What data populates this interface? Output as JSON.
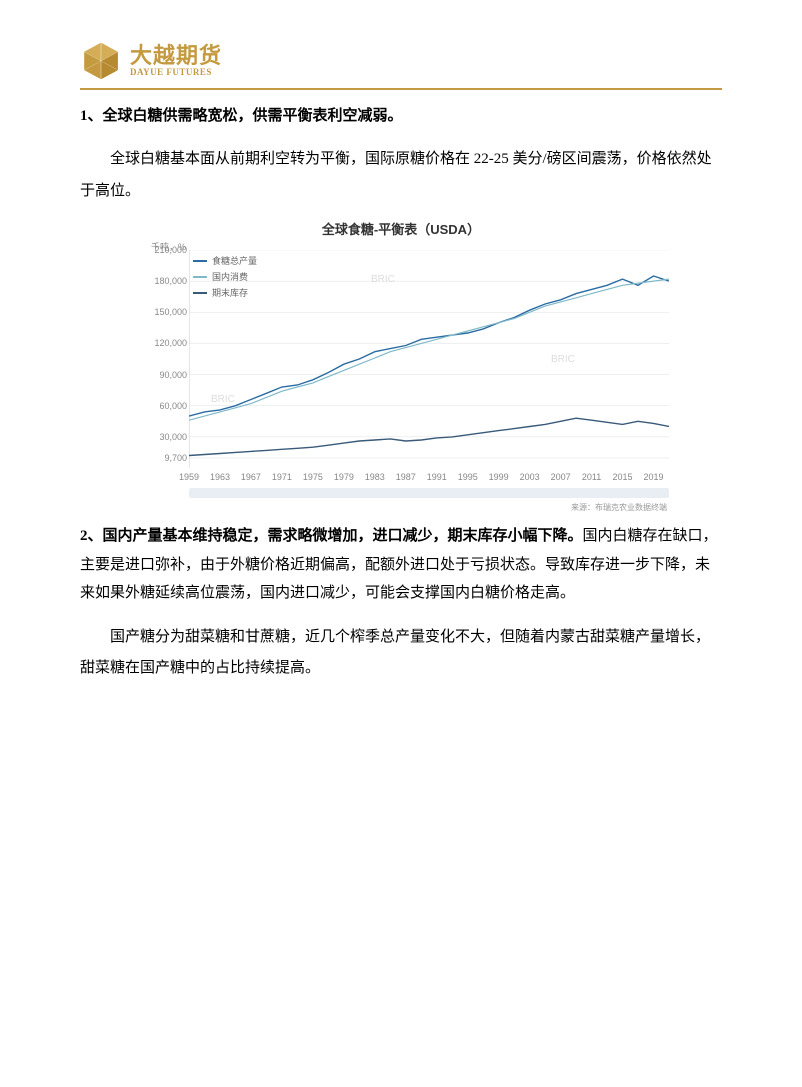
{
  "header": {
    "logo_cn": "大越期货",
    "logo_en": "DAYUE FUTURES",
    "hr_color": "#c39a3f"
  },
  "section1": {
    "heading": "1、全球白糖供需略宽松，供需平衡表利空减弱。",
    "para1": "全球白糖基本面从前期利空转为平衡，国际原糖价格在 22-25 美分/磅区间震荡，价格依然处于高位。"
  },
  "chart": {
    "type": "line",
    "title": "全球食糖-平衡表（USDA）",
    "y_unit": "千吨，%",
    "source": "来源：布瑞克农业数据终端",
    "watermark": "BRIC",
    "background_color": "#ffffff",
    "grid_color": "#e6e6e6",
    "axis_color": "#cccccc",
    "legend": [
      {
        "label": "食糖总产量",
        "color": "#2a6ca3"
      },
      {
        "label": "国内消费",
        "color": "#7fb9c9"
      },
      {
        "label": "期末库存",
        "color": "#3a5a7a"
      }
    ],
    "x_years": [
      1959,
      1963,
      1967,
      1971,
      1975,
      1979,
      1983,
      1987,
      1991,
      1995,
      1999,
      2003,
      2007,
      2011,
      2015,
      2019
    ],
    "y_ticks": [
      9700,
      30000,
      60000,
      90000,
      120000,
      150000,
      180000,
      210000
    ],
    "ylim": [
      0,
      210000
    ],
    "series": {
      "production": {
        "color": "#2a6ca3",
        "width": 1.4,
        "points": [
          50000,
          54000,
          56000,
          60000,
          66000,
          72000,
          78000,
          80000,
          85000,
          92000,
          100000,
          105000,
          112000,
          115000,
          118000,
          124000,
          126000,
          128000,
          130000,
          134000,
          140000,
          145000,
          152000,
          158000,
          162000,
          168000,
          172000,
          176000,
          182000,
          176000,
          185000,
          180000
        ]
      },
      "consumption": {
        "color": "#7fb9c9",
        "width": 1.2,
        "points": [
          46000,
          50000,
          54000,
          58000,
          62000,
          68000,
          74000,
          78000,
          82000,
          88000,
          94000,
          100000,
          106000,
          112000,
          116000,
          120000,
          124000,
          128000,
          132000,
          136000,
          140000,
          144000,
          150000,
          156000,
          160000,
          164000,
          168000,
          172000,
          176000,
          178000,
          180000,
          182000
        ]
      },
      "stock": {
        "color": "#3a5a7a",
        "width": 1.4,
        "points": [
          12000,
          13000,
          14000,
          15000,
          16000,
          17000,
          18000,
          19000,
          20000,
          22000,
          24000,
          26000,
          27000,
          28000,
          26000,
          27000,
          29000,
          30000,
          32000,
          34000,
          36000,
          38000,
          40000,
          42000,
          45000,
          48000,
          46000,
          44000,
          42000,
          45000,
          43000,
          40000
        ]
      }
    }
  },
  "section2": {
    "heading_and_text": "2、国内产量基本维持稳定，需求略微增加，进口减少，期末库存小幅下降。国内白糖存在缺口，主要是进口弥补，由于外糖价格近期偏高，配额外进口处于亏损状态。导致库存进一步下降，未来如果外糖延续高位震荡，国内进口减少，可能会支撑国内白糖价格走高。",
    "heading_prefix": "2、国内产量基本维持稳定，需求略微增加，进口减少，期末库存小幅下降。",
    "body_after": "国内白糖存在缺口，主要是进口弥补，由于外糖价格近期偏高，配额外进口处于亏损状态。导致库存进一步下降，未来如果外糖延续高位震荡，国内进口减少，可能会支撑国内白糖价格走高。",
    "para2": "国产糖分为甜菜糖和甘蔗糖，近几个榨季总产量变化不大，但随着内蒙古甜菜糖产量增长，甜菜糖在国产糖中的占比持续提高。"
  }
}
